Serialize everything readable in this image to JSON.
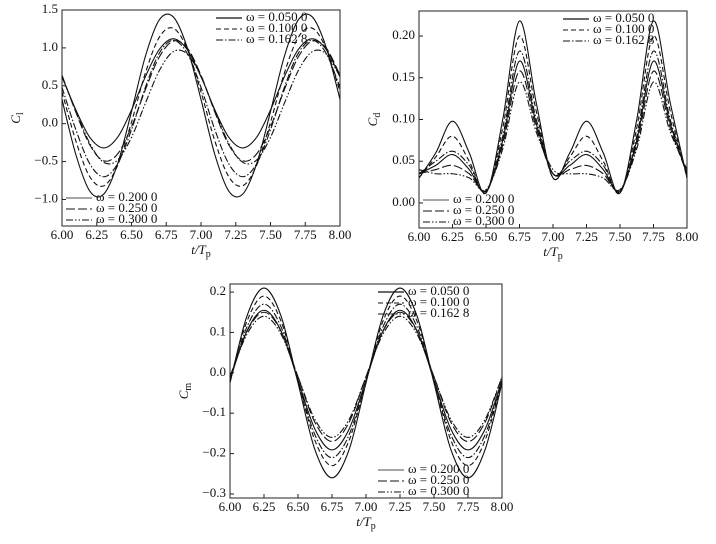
{
  "chart_data": [
    {
      "type": "line",
      "xlabel": "t/T",
      "xlabel_sub": "p",
      "ylabel": "C",
      "ylabel_sub": "l",
      "xlim": [
        6,
        8
      ],
      "ylim": [
        -1.35,
        1.5
      ],
      "xticks": [
        {
          "value": 6,
          "label": "6.00"
        },
        {
          "value": 6.25,
          "label": "6.25"
        },
        {
          "value": 6.5,
          "label": "6.50"
        },
        {
          "value": 6.75,
          "label": "6.75"
        },
        {
          "value": 7,
          "label": "7.00"
        },
        {
          "value": 7.25,
          "label": "7.25"
        },
        {
          "value": 7.5,
          "label": "7.50"
        },
        {
          "value": 7.75,
          "label": "7.75"
        },
        {
          "value": 8,
          "label": "8.00"
        }
      ],
      "yticks": [
        {
          "value": -1,
          "label": "−1.0"
        },
        {
          "value": -0.5,
          "label": "−0.5"
        },
        {
          "value": 0,
          "label": "0.0"
        },
        {
          "value": 0.5,
          "label": "0.5"
        },
        {
          "value": 1,
          "label": "1.0"
        },
        {
          "value": 1.5,
          "label": "1.5"
        }
      ],
      "x": [
        6.0,
        6.1,
        6.2,
        6.3,
        6.4,
        6.5,
        6.6,
        6.7,
        6.8,
        6.9,
        7.0,
        7.1,
        7.2,
        7.3,
        7.4,
        7.5,
        7.6,
        7.7,
        7.8,
        7.9,
        8.0
      ],
      "series": [
        {
          "name": "ω = 0.050 0",
          "color": "#111111",
          "linestyle": "solid",
          "legend": "upper right",
          "values": [
            0.32,
            -0.41,
            -0.89,
            -0.93,
            -0.53,
            0.16,
            0.89,
            1.37,
            1.41,
            1.01,
            0.32,
            -0.41,
            -0.89,
            -0.93,
            -0.53,
            0.16,
            0.89,
            1.37,
            1.41,
            1.01,
            0.32
          ]
        },
        {
          "name": "ω = 0.100 0",
          "color": "#111111",
          "linestyle": "dashed",
          "legend": "upper right",
          "values": [
            0.42,
            -0.23,
            -0.7,
            -0.82,
            -0.55,
            0.02,
            0.67,
            1.14,
            1.26,
            0.99,
            0.42,
            -0.23,
            -0.7,
            -0.82,
            -0.55,
            0.02,
            0.67,
            1.14,
            1.26,
            0.99,
            0.42
          ]
        },
        {
          "name": "ω = 0.162 8",
          "color": "#111111",
          "linestyle": "dashdot",
          "legend": "upper right",
          "values": [
            0.48,
            -0.08,
            -0.53,
            -0.7,
            -0.53,
            -0.08,
            0.48,
            0.93,
            1.1,
            0.93,
            0.48,
            -0.08,
            -0.53,
            -0.7,
            -0.53,
            -0.08,
            0.48,
            0.93,
            1.1,
            0.93,
            0.48
          ]
        },
        {
          "name": "ω = 0.200 0",
          "color": "#111111",
          "linestyle": "thin",
          "legend": "lower left",
          "values": [
            0.62,
            0.18,
            -0.18,
            -0.32,
            -0.18,
            0.18,
            0.62,
            0.98,
            1.12,
            0.98,
            0.62,
            0.18,
            -0.18,
            -0.32,
            -0.18,
            0.18,
            0.62,
            0.98,
            1.12,
            0.98,
            0.62
          ]
        },
        {
          "name": "ω = 0.250 0",
          "color": "#111111",
          "linestyle": "longdash",
          "legend": "lower left",
          "values": [
            0.64,
            0.15,
            -0.28,
            -0.49,
            -0.4,
            -0.04,
            0.45,
            0.88,
            1.09,
            1.0,
            0.64,
            0.15,
            -0.28,
            -0.49,
            -0.4,
            -0.04,
            0.45,
            0.88,
            1.09,
            1.0,
            0.64
          ]
        },
        {
          "name": "ω = 0.300 0",
          "color": "#111111",
          "linestyle": "dashdotdot",
          "legend": "lower left",
          "values": [
            0.62,
            0.17,
            -0.26,
            -0.51,
            -0.48,
            -0.18,
            0.27,
            0.7,
            0.95,
            0.92,
            0.62,
            0.17,
            -0.26,
            -0.51,
            -0.48,
            -0.18,
            0.27,
            0.7,
            0.95,
            0.92,
            0.62
          ]
        }
      ]
    },
    {
      "type": "line",
      "xlabel": "t/T",
      "xlabel_sub": "p",
      "ylabel": "C",
      "ylabel_sub": "d",
      "xlim": [
        6,
        8
      ],
      "ylim": [
        -0.03,
        0.23
      ],
      "xticks": [
        {
          "value": 6,
          "label": "6.00"
        },
        {
          "value": 6.25,
          "label": "6.25"
        },
        {
          "value": 6.5,
          "label": "6.50"
        },
        {
          "value": 6.75,
          "label": "6.75"
        },
        {
          "value": 7,
          "label": "7.00"
        },
        {
          "value": 7.25,
          "label": "7.25"
        },
        {
          "value": 7.5,
          "label": "7.50"
        },
        {
          "value": 7.75,
          "label": "7.75"
        },
        {
          "value": 8,
          "label": "8.00"
        }
      ],
      "yticks": [
        {
          "value": 0,
          "label": "0.00"
        },
        {
          "value": 0.05,
          "label": "0.05"
        },
        {
          "value": 0.1,
          "label": "0.10"
        },
        {
          "value": 0.15,
          "label": "0.15"
        },
        {
          "value": 0.2,
          "label": "0.20"
        }
      ],
      "x": [
        6.0,
        6.125,
        6.25,
        6.375,
        6.5,
        6.625,
        6.75,
        6.875,
        7.0,
        7.125,
        7.25,
        7.375,
        7.5,
        7.625,
        7.75,
        7.875,
        8.0
      ],
      "series": [
        {
          "name": "ω = 0.050 0",
          "color": "#111111",
          "linestyle": "solid",
          "legend": "upper right",
          "values": [
            0.03,
            0.06,
            0.098,
            0.06,
            0.012,
            0.1,
            0.218,
            0.12,
            0.03,
            0.06,
            0.098,
            0.06,
            0.012,
            0.1,
            0.218,
            0.12,
            0.03
          ]
        },
        {
          "name": "ω = 0.100 0",
          "color": "#111111",
          "linestyle": "dashed",
          "legend": "upper right",
          "values": [
            0.03,
            0.055,
            0.08,
            0.05,
            0.012,
            0.09,
            0.2,
            0.11,
            0.03,
            0.055,
            0.08,
            0.05,
            0.012,
            0.09,
            0.2,
            0.11,
            0.03
          ]
        },
        {
          "name": "ω = 0.162 8",
          "color": "#111111",
          "linestyle": "dashdot",
          "legend": "upper right",
          "values": [
            0.035,
            0.05,
            0.062,
            0.045,
            0.013,
            0.08,
            0.182,
            0.1,
            0.035,
            0.05,
            0.062,
            0.045,
            0.013,
            0.08,
            0.182,
            0.1,
            0.035
          ]
        },
        {
          "name": "ω = 0.200 0",
          "color": "#111111",
          "linestyle": "thin",
          "legend": "lower left",
          "values": [
            0.035,
            0.045,
            0.058,
            0.04,
            0.014,
            0.075,
            0.17,
            0.095,
            0.035,
            0.045,
            0.058,
            0.04,
            0.014,
            0.075,
            0.17,
            0.095,
            0.035
          ]
        },
        {
          "name": "ω = 0.250 0",
          "color": "#111111",
          "linestyle": "longdash",
          "legend": "lower left",
          "values": [
            0.035,
            0.04,
            0.045,
            0.035,
            0.015,
            0.07,
            0.158,
            0.09,
            0.035,
            0.04,
            0.045,
            0.035,
            0.015,
            0.07,
            0.158,
            0.09,
            0.035
          ]
        },
        {
          "name": "ω = 0.300 0",
          "color": "#111111",
          "linestyle": "dashdotdot",
          "legend": "lower left",
          "values": [
            0.04,
            0.035,
            0.035,
            0.03,
            0.016,
            0.065,
            0.145,
            0.085,
            0.04,
            0.035,
            0.035,
            0.03,
            0.016,
            0.065,
            0.145,
            0.085,
            0.04
          ]
        }
      ]
    },
    {
      "type": "line",
      "xlabel": "t/T",
      "xlabel_sub": "p",
      "ylabel": "C",
      "ylabel_sub": "m",
      "xlim": [
        6,
        8
      ],
      "ylim": [
        -0.31,
        0.22
      ],
      "xticks": [
        {
          "value": 6,
          "label": "6.00"
        },
        {
          "value": 6.25,
          "label": "6.25"
        },
        {
          "value": 6.5,
          "label": "6.50"
        },
        {
          "value": 6.75,
          "label": "6.75"
        },
        {
          "value": 7,
          "label": "7.00"
        },
        {
          "value": 7.25,
          "label": "7.25"
        },
        {
          "value": 7.5,
          "label": "7.50"
        },
        {
          "value": 7.75,
          "label": "7.75"
        },
        {
          "value": 8,
          "label": "8.00"
        }
      ],
      "yticks": [
        {
          "value": -0.3,
          "label": "−0.3"
        },
        {
          "value": -0.2,
          "label": "−0.2"
        },
        {
          "value": -0.1,
          "label": "−0.1"
        },
        {
          "value": 0,
          "label": "0.0"
        },
        {
          "value": 0.1,
          "label": "0.1"
        },
        {
          "value": 0.2,
          "label": "0.2"
        }
      ],
      "x": [
        6.0,
        6.125,
        6.25,
        6.375,
        6.5,
        6.625,
        6.75,
        6.875,
        7.0,
        7.125,
        7.25,
        7.375,
        7.5,
        7.625,
        7.75,
        7.875,
        8.0
      ],
      "series": [
        {
          "name": "ω = 0.050 0",
          "color": "#111111",
          "linestyle": "solid",
          "legend": "upper right",
          "values": [
            -0.025,
            0.141,
            0.21,
            0.141,
            -0.025,
            -0.191,
            -0.26,
            -0.191,
            -0.025,
            0.141,
            0.21,
            0.141,
            -0.025,
            -0.191,
            -0.26,
            -0.191,
            -0.025
          ]
        },
        {
          "name": "ω = 0.100 0",
          "color": "#111111",
          "linestyle": "dashed",
          "legend": "upper right",
          "values": [
            -0.02,
            0.128,
            0.19,
            0.128,
            -0.02,
            -0.168,
            -0.23,
            -0.168,
            -0.02,
            0.128,
            0.19,
            0.128,
            -0.02,
            -0.168,
            -0.23,
            -0.168,
            -0.02
          ]
        },
        {
          "name": "ω = 0.162 8",
          "color": "#111111",
          "linestyle": "dashdot",
          "legend": "upper right",
          "values": [
            -0.02,
            0.114,
            0.17,
            0.114,
            -0.02,
            -0.154,
            -0.21,
            -0.154,
            -0.02,
            0.114,
            0.17,
            0.114,
            -0.02,
            -0.154,
            -0.21,
            -0.154,
            -0.02
          ]
        },
        {
          "name": "ω = 0.200 0",
          "color": "#111111",
          "linestyle": "thin",
          "legend": "lower right",
          "values": [
            -0.018,
            0.104,
            0.155,
            0.104,
            -0.018,
            -0.14,
            -0.191,
            -0.14,
            -0.018,
            0.104,
            0.155,
            0.104,
            -0.018,
            -0.14,
            -0.191,
            -0.14,
            -0.018
          ]
        },
        {
          "name": "ω = 0.250 0",
          "color": "#111111",
          "linestyle": "longdash",
          "legend": "lower right",
          "values": [
            -0.01,
            0.103,
            0.15,
            0.103,
            -0.01,
            -0.123,
            -0.17,
            -0.123,
            -0.01,
            0.103,
            0.15,
            0.103,
            -0.01,
            -0.123,
            -0.17,
            -0.123,
            -0.01
          ]
        },
        {
          "name": "ω = 0.300 0",
          "color": "#111111",
          "linestyle": "dashdotdot",
          "legend": "lower right",
          "values": [
            -0.01,
            0.096,
            0.14,
            0.096,
            -0.01,
            -0.116,
            -0.16,
            -0.116,
            -0.01,
            0.096,
            0.14,
            0.096,
            -0.01,
            -0.116,
            -0.16,
            -0.116,
            -0.01
          ]
        }
      ]
    }
  ]
}
